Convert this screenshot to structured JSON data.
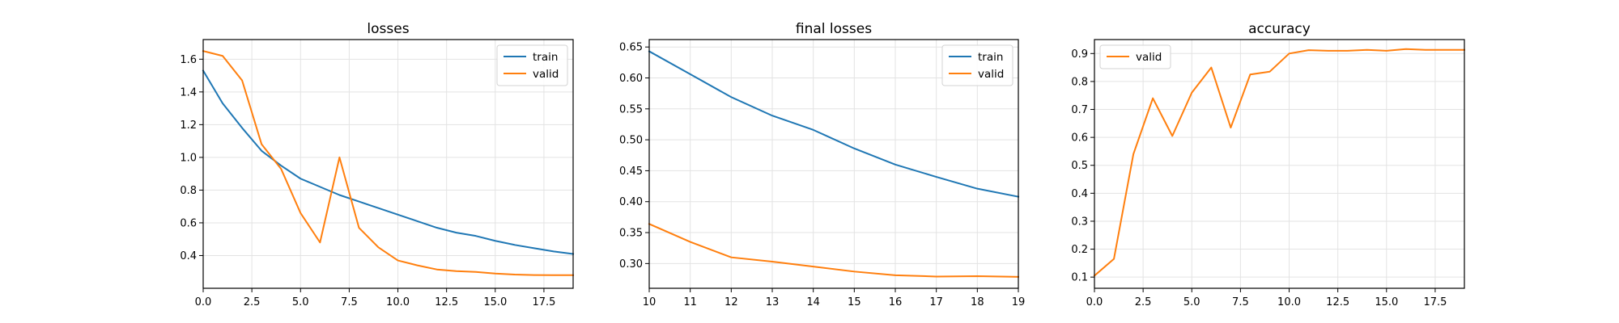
{
  "chart_data": [
    {
      "type": "line",
      "title": "losses",
      "xlabel": "",
      "ylabel": "",
      "xlim": [
        0,
        19
      ],
      "ylim": [
        0.2,
        1.72
      ],
      "xticks": [
        0.0,
        2.5,
        5.0,
        7.5,
        10.0,
        12.5,
        15.0,
        17.5
      ],
      "xtick_labels": [
        "0.0",
        "2.5",
        "5.0",
        "7.5",
        "10.0",
        "12.5",
        "15.0",
        "17.5"
      ],
      "yticks": [
        0.4,
        0.6,
        0.8,
        1.0,
        1.2,
        1.4,
        1.6
      ],
      "ytick_labels": [
        "0.4",
        "0.6",
        "0.8",
        "1.0",
        "1.2",
        "1.4",
        "1.6"
      ],
      "grid": true,
      "legend": "upper right",
      "series": [
        {
          "name": "train",
          "color": "#1f77b4",
          "x": [
            0,
            1,
            2,
            3,
            4,
            5,
            6,
            7,
            8,
            9,
            10,
            11,
            12,
            13,
            14,
            15,
            16,
            17,
            18,
            19
          ],
          "y": [
            1.53,
            1.33,
            1.18,
            1.04,
            0.95,
            0.87,
            0.82,
            0.77,
            0.73,
            0.69,
            0.65,
            0.61,
            0.57,
            0.54,
            0.52,
            0.49,
            0.465,
            0.445,
            0.425,
            0.41
          ]
        },
        {
          "name": "valid",
          "color": "#ff7f0e",
          "x": [
            0,
            1,
            2,
            3,
            4,
            5,
            6,
            7,
            8,
            9,
            10,
            11,
            12,
            13,
            14,
            15,
            16,
            17,
            18,
            19
          ],
          "y": [
            1.65,
            1.62,
            1.47,
            1.08,
            0.93,
            0.66,
            0.48,
            1.0,
            0.57,
            0.45,
            0.37,
            0.34,
            0.315,
            0.305,
            0.3,
            0.29,
            0.284,
            0.281,
            0.28,
            0.28
          ]
        }
      ]
    },
    {
      "type": "line",
      "title": "final losses",
      "xlabel": "",
      "ylabel": "",
      "xlim": [
        10,
        19
      ],
      "ylim": [
        0.26,
        0.662
      ],
      "xticks": [
        10,
        11,
        12,
        13,
        14,
        15,
        16,
        17,
        18,
        19
      ],
      "xtick_labels": [
        "10",
        "11",
        "12",
        "13",
        "14",
        "15",
        "16",
        "17",
        "18",
        "19"
      ],
      "yticks": [
        0.3,
        0.35,
        0.4,
        0.45,
        0.5,
        0.55,
        0.6,
        0.65
      ],
      "ytick_labels": [
        "0.30",
        "0.35",
        "0.40",
        "0.45",
        "0.50",
        "0.55",
        "0.60",
        "0.65"
      ],
      "grid": true,
      "legend": "upper right",
      "series": [
        {
          "name": "train",
          "color": "#1f77b4",
          "x": [
            10,
            11,
            12,
            13,
            14,
            15,
            16,
            17,
            18,
            19
          ],
          "y": [
            0.643,
            0.606,
            0.569,
            0.539,
            0.516,
            0.486,
            0.46,
            0.44,
            0.421,
            0.408
          ]
        },
        {
          "name": "valid",
          "color": "#ff7f0e",
          "x": [
            10,
            11,
            12,
            13,
            14,
            15,
            16,
            17,
            18,
            19
          ],
          "y": [
            0.364,
            0.335,
            0.31,
            0.303,
            0.295,
            0.287,
            0.281,
            0.279,
            0.2795,
            0.2785
          ]
        }
      ]
    },
    {
      "type": "line",
      "title": "accuracy",
      "xlabel": "",
      "ylabel": "",
      "xlim": [
        0,
        19
      ],
      "ylim": [
        0.06,
        0.95
      ],
      "xticks": [
        0.0,
        2.5,
        5.0,
        7.5,
        10.0,
        12.5,
        15.0,
        17.5
      ],
      "xtick_labels": [
        "0.0",
        "2.5",
        "5.0",
        "7.5",
        "10.0",
        "12.5",
        "15.0",
        "17.5"
      ],
      "yticks": [
        0.1,
        0.2,
        0.3,
        0.4,
        0.5,
        0.6,
        0.7,
        0.8,
        0.9
      ],
      "ytick_labels": [
        "0.1",
        "0.2",
        "0.3",
        "0.4",
        "0.5",
        "0.6",
        "0.7",
        "0.8",
        "0.9"
      ],
      "grid": true,
      "legend": "upper left",
      "series": [
        {
          "name": "valid",
          "color": "#ff7f0e",
          "x": [
            0,
            1,
            2,
            3,
            4,
            5,
            6,
            7,
            8,
            9,
            10,
            11,
            12,
            13,
            14,
            15,
            16,
            17,
            18,
            19
          ],
          "y": [
            0.105,
            0.165,
            0.54,
            0.74,
            0.605,
            0.76,
            0.85,
            0.635,
            0.825,
            0.835,
            0.9,
            0.912,
            0.91,
            0.91,
            0.913,
            0.91,
            0.916,
            0.913,
            0.913,
            0.913
          ]
        }
      ]
    }
  ]
}
